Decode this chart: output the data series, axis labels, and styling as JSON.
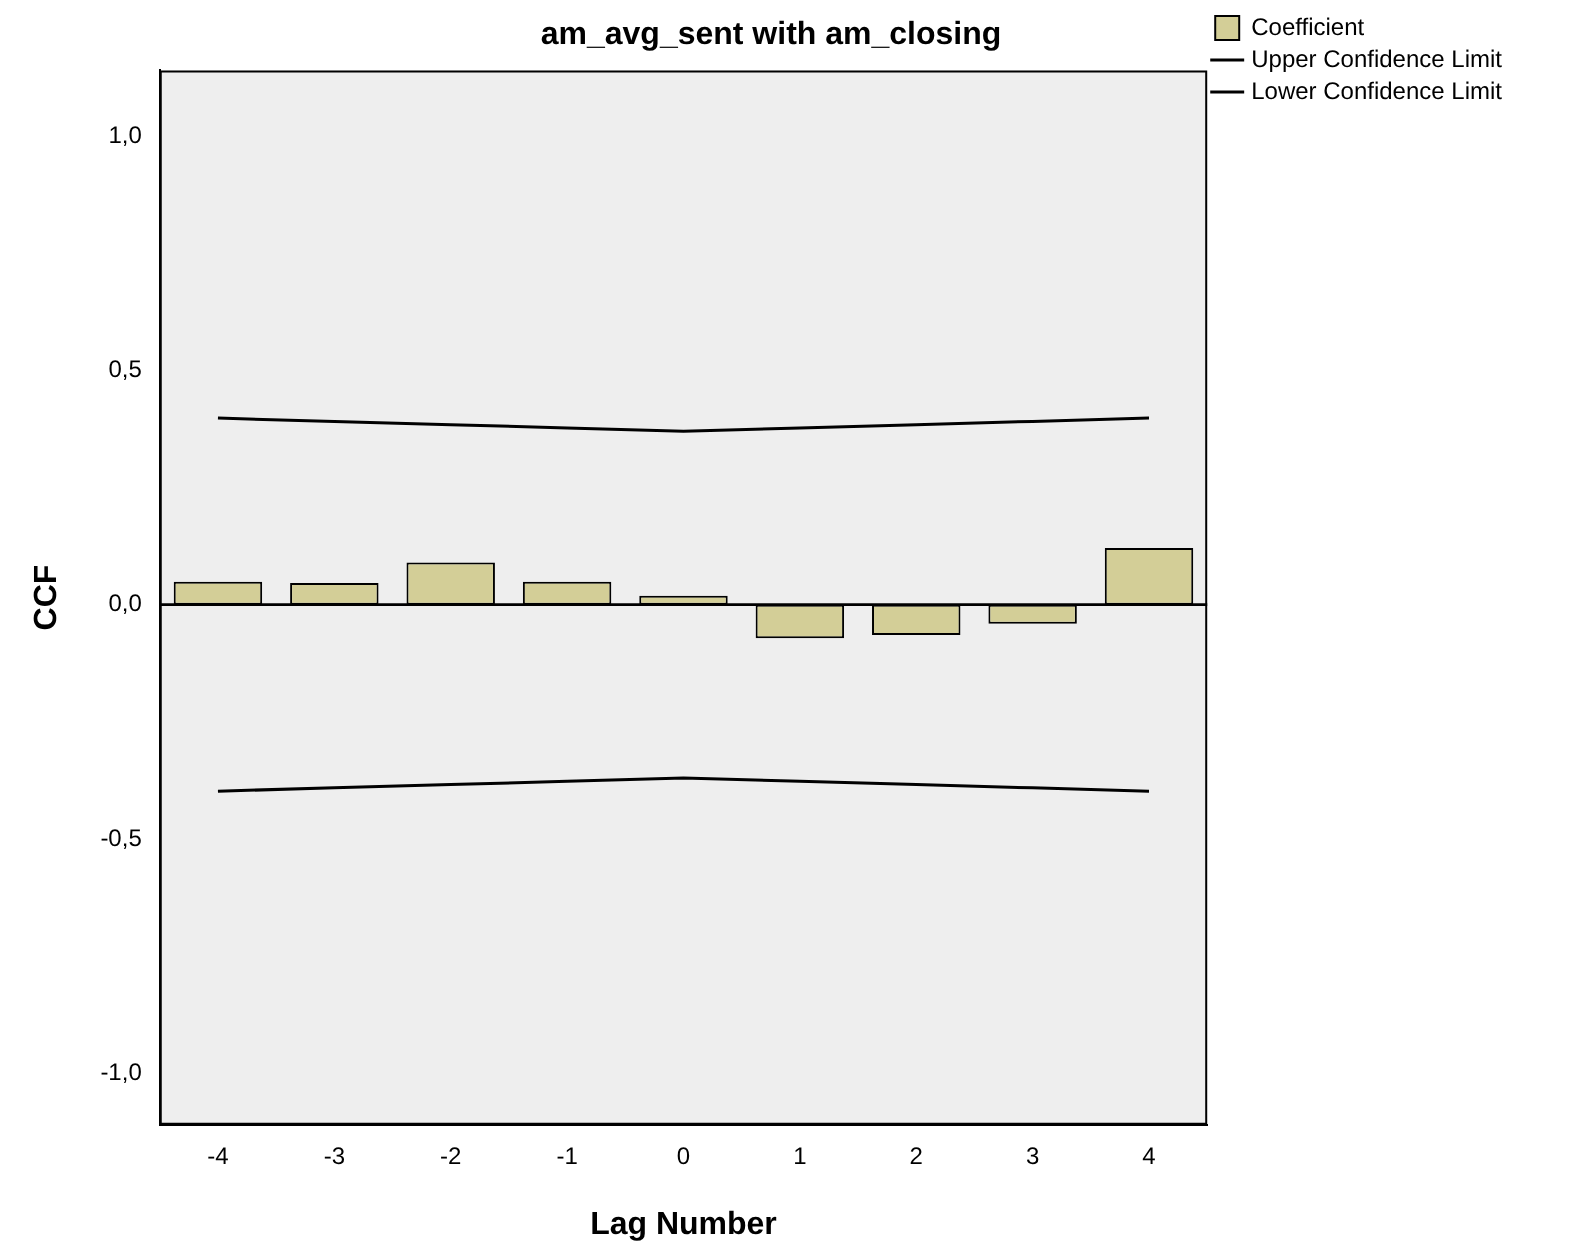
{
  "chart_data": {
    "type": "bar",
    "title": "am_avg_sent with am_closing",
    "xlabel": "Lag Number",
    "ylabel": "CCF",
    "categories": [
      "-4",
      "-3",
      "-2",
      "-1",
      "0",
      "1",
      "2",
      "3",
      "4"
    ],
    "series": [
      {
        "name": "Coefficient",
        "color": "#d3ce97",
        "values": [
          0.049,
          0.046,
          0.09,
          0.049,
          0.019,
          -0.072,
          -0.065,
          -0.041,
          0.121
        ]
      },
      {
        "name": "Upper Confidence Limit",
        "type": "line",
        "color": "#000000",
        "values": [
          0.398,
          0.391,
          0.384,
          0.377,
          0.37,
          0.377,
          0.384,
          0.391,
          0.398
        ]
      },
      {
        "name": "Lower Confidence Limit",
        "type": "line",
        "color": "#000000",
        "values": [
          -0.398,
          -0.391,
          -0.384,
          -0.377,
          -0.37,
          -0.377,
          -0.384,
          -0.391,
          -0.398
        ]
      }
    ],
    "ylim": [
      -1.11,
      1.14
    ],
    "yticks": [
      {
        "value": -1,
        "label": "-1,0"
      },
      {
        "value": -0.5,
        "label": "-0,5"
      },
      {
        "value": 0,
        "label": "0,0"
      },
      {
        "value": 0.5,
        "label": "0,5"
      },
      {
        "value": 1,
        "label": "1,0"
      }
    ],
    "ref_lines": [
      {
        "axis": "y",
        "value": 0,
        "color": "#000000"
      }
    ],
    "grid": false,
    "legend": "top right",
    "marker": "none",
    "line_style": "solid"
  }
}
